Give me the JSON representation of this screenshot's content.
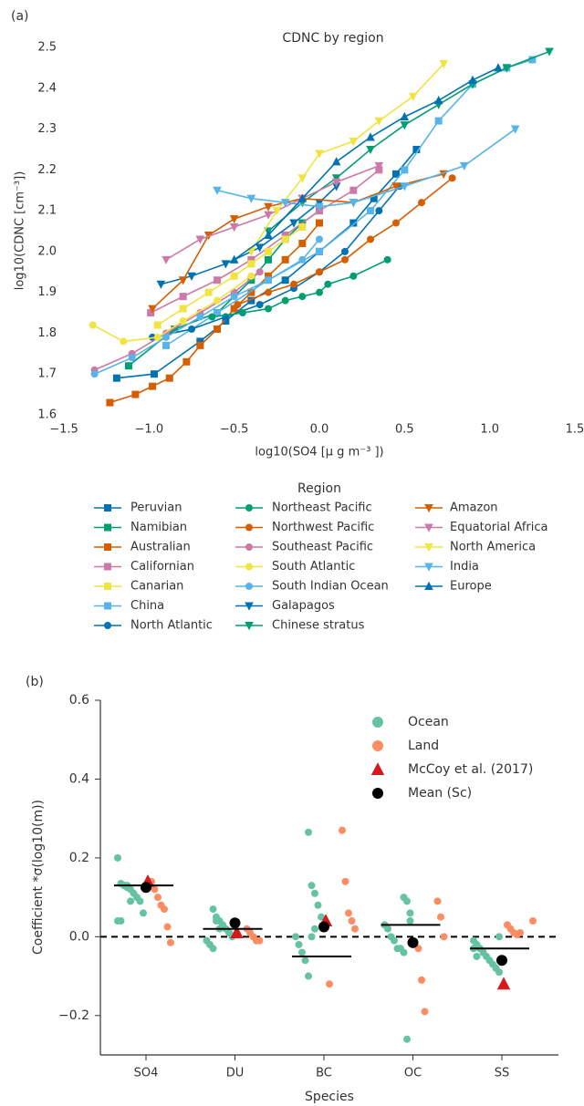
{
  "chart_data": [
    {
      "type": "line",
      "panel_label": "(a)",
      "title": "CDNC by region",
      "x_label": "log10(SO4 [μ g m⁻³ ])",
      "y_label": "log10(CDNC [cm⁻³])",
      "legend_title": "Region",
      "xlim": [
        -1.5,
        1.5
      ],
      "xticks": [
        {
          "value": -1.5,
          "label": "−1.5"
        },
        {
          "value": -1.0,
          "label": "−1.0"
        },
        {
          "value": -0.5,
          "label": "−0.5"
        },
        {
          "value": 0,
          "label": "0.0"
        },
        0.5,
        {
          "value": 1.0,
          "label": "1.0"
        },
        1.5
      ],
      "ylim": [
        1.6,
        2.5
      ],
      "yticks": [
        1.6,
        1.7,
        1.8,
        1.9,
        {
          "value": 2.0,
          "label": "2.0"
        },
        2.1,
        2.2,
        2.3,
        2.4,
        2.5
      ],
      "series": [
        {
          "name": "Peruvian",
          "color": "#0072b2",
          "marker": "square",
          "x": [
            -1.19,
            -0.97,
            -0.7,
            -0.55,
            -0.4,
            -0.2,
            0.0,
            0.2,
            0.32,
            0.45,
            0.57
          ],
          "values": [
            1.69,
            1.7,
            1.78,
            1.83,
            1.88,
            1.93,
            2.0,
            2.07,
            2.13,
            2.19,
            2.25
          ]
        },
        {
          "name": "Namibian",
          "color": "#009e73",
          "marker": "square",
          "x": [
            -1.12,
            -0.85,
            -0.6,
            -0.4,
            -0.3,
            -0.2,
            -0.1,
            0.0
          ],
          "values": [
            1.72,
            1.81,
            1.85,
            1.93,
            1.98,
            2.03,
            2.07,
            2.1
          ]
        },
        {
          "name": "Australian",
          "color": "#d55e00",
          "marker": "square",
          "x": [
            -1.23,
            -1.08,
            -0.98,
            -0.88,
            -0.78,
            -0.7,
            -0.6,
            -0.5,
            -0.4,
            -0.3,
            -0.2,
            -0.1,
            0.0
          ],
          "values": [
            1.63,
            1.65,
            1.67,
            1.69,
            1.73,
            1.77,
            1.81,
            1.86,
            1.9,
            1.94,
            1.98,
            2.02,
            2.07
          ]
        },
        {
          "name": "Californian",
          "color": "#cc79a7",
          "marker": "square",
          "x": [
            -0.99,
            -0.8,
            -0.6,
            -0.4,
            -0.2,
            0.0,
            0.2,
            0.35
          ],
          "values": [
            1.85,
            1.89,
            1.93,
            1.98,
            2.04,
            2.1,
            2.15,
            2.2
          ]
        },
        {
          "name": "Canarian",
          "color": "#f0e442",
          "marker": "square",
          "x": [
            -0.95,
            -0.8,
            -0.65,
            -0.5,
            -0.4,
            -0.3,
            -0.2,
            -0.1
          ],
          "values": [
            1.82,
            1.86,
            1.9,
            1.94,
            1.97,
            2.0,
            2.03,
            2.06
          ]
        },
        {
          "name": "China",
          "color": "#56b4e9",
          "marker": "square",
          "x": [
            -0.9,
            -0.6,
            -0.3,
            0.0,
            0.3,
            0.5,
            0.7,
            0.9,
            1.1,
            1.25
          ],
          "values": [
            1.77,
            1.85,
            1.93,
            2.0,
            2.1,
            2.2,
            2.32,
            2.41,
            2.45,
            2.47
          ]
        },
        {
          "name": "North Atlantic",
          "color": "#0072b2",
          "marker": "circle",
          "x": [
            -0.98,
            -0.75,
            -0.55,
            -0.35,
            -0.15,
            0.0,
            0.15,
            0.35,
            0.47
          ],
          "values": [
            1.79,
            1.81,
            1.84,
            1.87,
            1.91,
            1.95,
            2.0,
            2.1,
            2.16
          ]
        },
        {
          "name": "Northeast Pacific",
          "color": "#009e73",
          "marker": "circle",
          "x": [
            -0.63,
            -0.45,
            -0.3,
            -0.2,
            -0.1,
            0.0,
            0.05,
            0.2,
            0.4
          ],
          "values": [
            1.84,
            1.85,
            1.86,
            1.88,
            1.89,
            1.9,
            1.92,
            1.94,
            1.98
          ]
        },
        {
          "name": "Northwest Pacific",
          "color": "#d55e00",
          "marker": "circle",
          "x": [
            -0.48,
            -0.3,
            -0.15,
            0.0,
            0.15,
            0.3,
            0.45,
            0.6,
            0.78
          ],
          "values": [
            1.87,
            1.9,
            1.92,
            1.95,
            1.98,
            2.03,
            2.07,
            2.12,
            2.18
          ]
        },
        {
          "name": "Southeast Pacific",
          "color": "#cc79a7",
          "marker": "circle",
          "x": [
            -1.32,
            -1.1,
            -0.9,
            -0.7,
            -0.5,
            -0.35
          ],
          "values": [
            1.71,
            1.75,
            1.8,
            1.85,
            1.9,
            1.95
          ]
        },
        {
          "name": "South Atlantic",
          "color": "#f0e442",
          "marker": "circle",
          "x": [
            -1.33,
            -1.15,
            -0.95,
            -0.8,
            -0.6,
            -0.4
          ],
          "values": [
            1.82,
            1.78,
            1.79,
            1.83,
            1.88,
            1.94
          ]
        },
        {
          "name": "South Indian Ocean",
          "color": "#56b4e9",
          "marker": "circle",
          "x": [
            -1.32,
            -1.1,
            -0.9,
            -0.7,
            -0.5,
            -0.3,
            -0.1,
            0.0
          ],
          "values": [
            1.7,
            1.74,
            1.79,
            1.84,
            1.89,
            1.93,
            1.98,
            2.03
          ]
        },
        {
          "name": "Galapagos",
          "color": "#0072b2",
          "marker": "triangle-down",
          "x": [
            -0.93,
            -0.75,
            -0.55,
            -0.35,
            -0.15,
            0.0,
            0.1
          ],
          "values": [
            1.92,
            1.94,
            1.97,
            2.01,
            2.07,
            2.12,
            2.16
          ]
        },
        {
          "name": "Chinese stratus",
          "color": "#009e73",
          "marker": "triangle-down",
          "x": [
            -0.3,
            -0.1,
            0.1,
            0.3,
            0.5,
            0.7,
            0.9,
            1.1,
            1.35
          ],
          "values": [
            2.05,
            2.12,
            2.18,
            2.25,
            2.31,
            2.36,
            2.41,
            2.45,
            2.49
          ]
        },
        {
          "name": "Amazon",
          "color": "#d55e00",
          "marker": "triangle-down",
          "x": [
            -0.98,
            -0.8,
            -0.65,
            -0.5,
            -0.3,
            -0.1,
            0.2,
            0.45,
            0.73
          ],
          "values": [
            1.86,
            1.93,
            2.04,
            2.08,
            2.11,
            2.13,
            2.12,
            2.16,
            2.19
          ]
        },
        {
          "name": "Equatorial Africa",
          "color": "#cc79a7",
          "marker": "triangle-down",
          "x": [
            -0.9,
            -0.7,
            -0.5,
            -0.3,
            -0.1,
            0.1,
            0.35
          ],
          "values": [
            1.98,
            2.03,
            2.06,
            2.09,
            2.13,
            2.17,
            2.21
          ]
        },
        {
          "name": "North America",
          "color": "#f0e442",
          "marker": "triangle-down",
          "x": [
            -0.4,
            -0.25,
            -0.1,
            0.0,
            0.2,
            0.35,
            0.55,
            0.73
          ],
          "values": [
            2.0,
            2.1,
            2.18,
            2.24,
            2.27,
            2.32,
            2.38,
            2.46
          ]
        },
        {
          "name": "India",
          "color": "#56b4e9",
          "marker": "triangle-down",
          "x": [
            -0.6,
            -0.4,
            -0.2,
            0.0,
            0.2,
            0.5,
            0.85,
            1.15
          ],
          "values": [
            2.15,
            2.13,
            2.12,
            2.11,
            2.12,
            2.16,
            2.21,
            2.3
          ]
        },
        {
          "name": "Europe",
          "color": "#0072b2",
          "marker": "triangle-up",
          "x": [
            -0.5,
            -0.3,
            -0.1,
            0.1,
            0.3,
            0.5,
            0.7,
            0.9,
            1.05
          ],
          "values": [
            1.98,
            2.04,
            2.13,
            2.22,
            2.28,
            2.33,
            2.37,
            2.42,
            2.45
          ]
        }
      ]
    },
    {
      "type": "strip",
      "panel_label": "(b)",
      "x_label": "Species",
      "y_label": "Coefficient *σ(log10(m))",
      "categories": [
        "SO4",
        "DU",
        "BC",
        "OC",
        "SS"
      ],
      "ylim": [
        -0.3,
        0.6
      ],
      "yticks": [
        {
          "value": -0.2,
          "label": "−0.2"
        },
        {
          "value": 0,
          "label": "0.0"
        },
        0.2,
        0.4,
        0.6
      ],
      "reference_line": 0,
      "line_values": [
        0.13,
        0.02,
        -0.05,
        0.03,
        -0.03
      ],
      "series": [
        {
          "name": "Ocean",
          "color": "#66c2a5",
          "marker": "circle",
          "values": [
            [
              0.2,
              0.135,
              0.13,
              0.125,
              0.12,
              0.11,
              0.1,
              0.09,
              0.06,
              0.04,
              0.04,
              0.13,
              0.13,
              0.09
            ],
            [
              0.07,
              0.05,
              0.04,
              0.03,
              0.02,
              0.01,
              0.0,
              -0.01,
              -0.02,
              -0.03,
              0.04,
              0.02
            ],
            [
              0.265,
              0.13,
              0.11,
              0.08,
              0.05,
              0.0,
              -0.02,
              -0.04,
              -0.06,
              -0.1,
              0.0,
              0.02
            ],
            [
              0.1,
              0.09,
              0.04,
              0.03,
              0.02,
              0.0,
              -0.01,
              -0.03,
              -0.03,
              -0.04,
              -0.26,
              0.06
            ],
            [
              0.0,
              -0.01,
              -0.02,
              -0.03,
              -0.04,
              -0.05,
              -0.06,
              -0.07,
              -0.08,
              -0.09,
              -0.03,
              -0.05
            ]
          ]
        },
        {
          "name": "Land",
          "color": "#fc8d62",
          "marker": "circle",
          "values": [
            [
              0.14,
              0.12,
              0.1,
              0.08,
              0.07,
              0.025,
              -0.015
            ],
            [
              0.02,
              0.01,
              0.0,
              -0.01,
              -0.01
            ],
            [
              0.27,
              0.14,
              0.06,
              0.04,
              0.02,
              -0.12
            ],
            [
              0.09,
              0.05,
              0.0,
              -0.03,
              -0.11,
              -0.19
            ],
            [
              0.04,
              0.03,
              0.02,
              0.01,
              0.005,
              0.01
            ]
          ]
        },
        {
          "name": "McCoy  et al. (2017)",
          "color": "#d7191c",
          "marker": "triangle-up",
          "values": [
            0.14,
            0.01,
            0.04,
            null,
            -0.12
          ]
        },
        {
          "name": "Mean (Sc)",
          "color": "#000000",
          "marker": "circle",
          "values": [
            0.125,
            0.035,
            0.025,
            -0.015,
            -0.06
          ]
        }
      ]
    }
  ]
}
